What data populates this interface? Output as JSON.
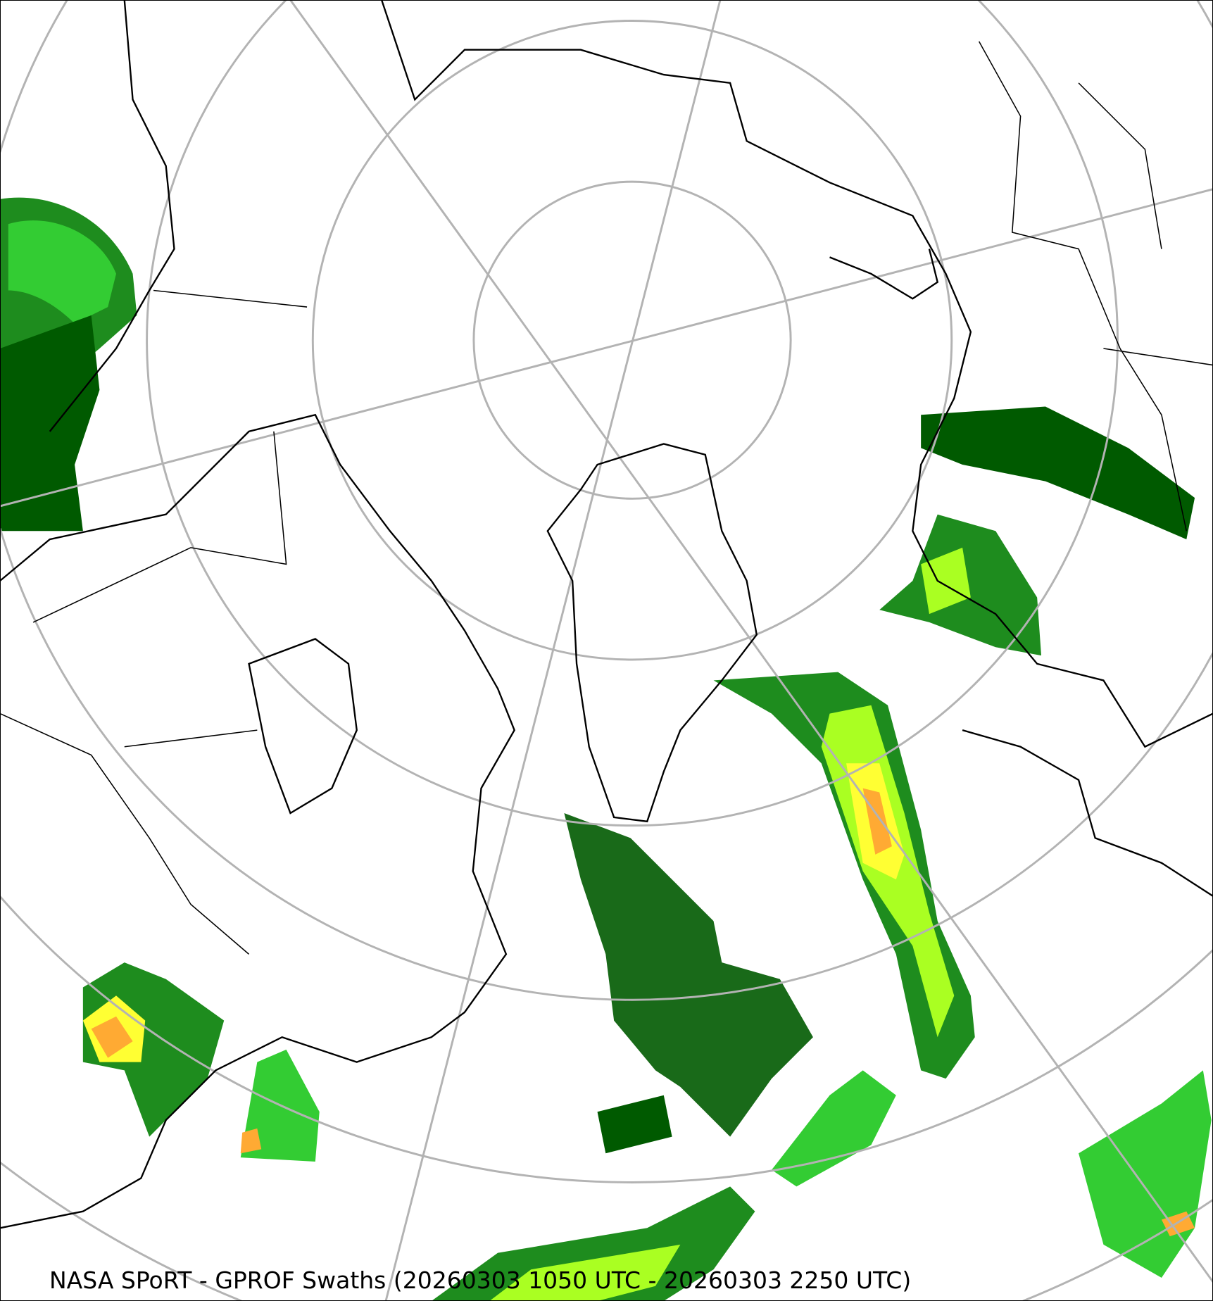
{
  "caption": "NASA SPoRT - GPROF Swaths (20260303 1050 UTC - 20260303 2250 UTC)",
  "map": {
    "projection": "north-polar-stereographic",
    "graticule_color": "#b3b3b3",
    "coastline_color": "#000000",
    "precip_colors": [
      "#005a00",
      "#1e8c1e",
      "#33cc33",
      "#aaff22",
      "#ffff33",
      "#ffaa33",
      "#ff5522"
    ]
  }
}
